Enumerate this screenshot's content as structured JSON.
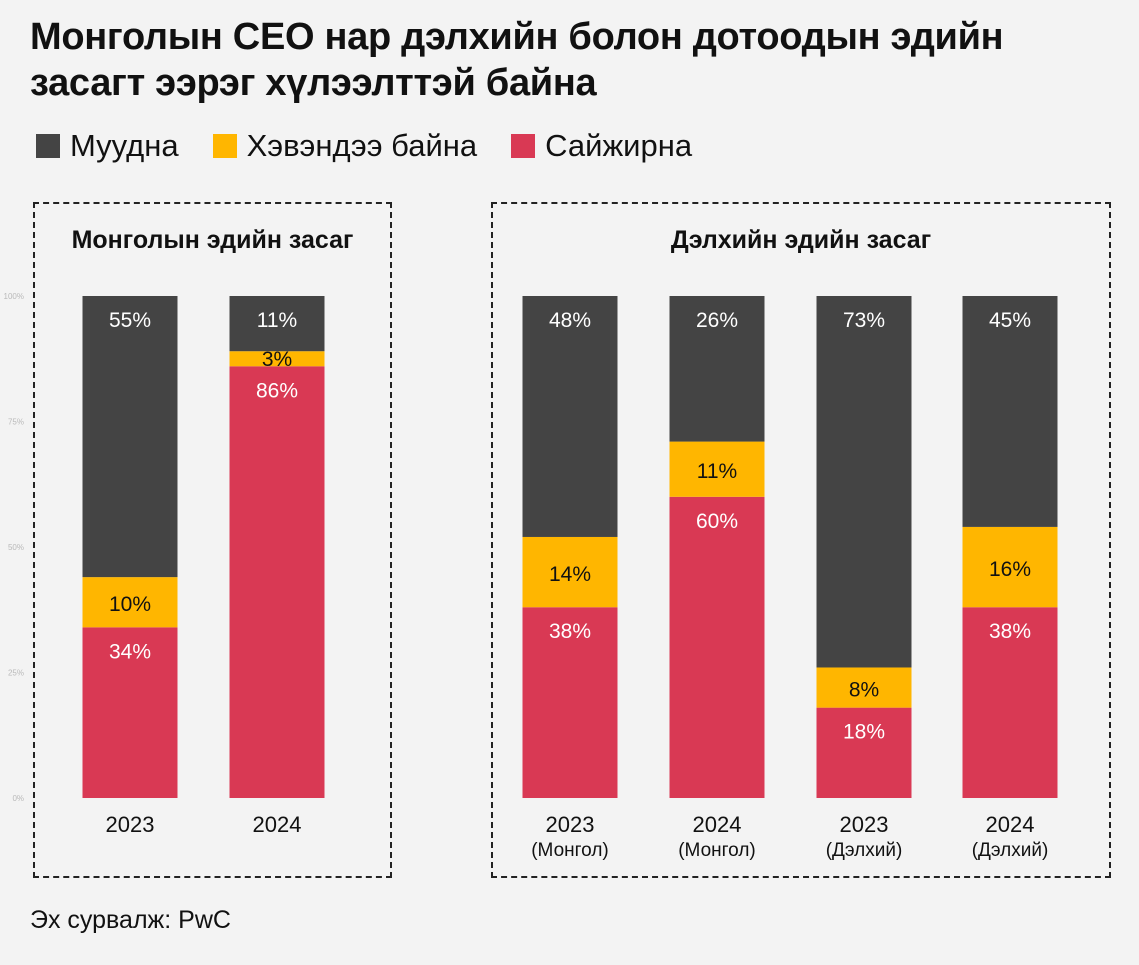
{
  "title": "Монголын CEO нар дэлхийн болон дотоодын эдийн засагт ээрэг хүлээлттэй байна",
  "legend": [
    {
      "label": "Муудна",
      "color": "#444444"
    },
    {
      "label": "Хэвэндээ байна",
      "color": "#FFB600"
    },
    {
      "label": "Сайжирна",
      "color": "#D93954"
    }
  ],
  "source": "Эх сурвалж: PwC",
  "chart_data": [
    {
      "type": "bar",
      "stacked": true,
      "title": "Монголын эдийн засаг",
      "categories": [
        [
          "2023"
        ],
        [
          "2024"
        ]
      ],
      "series": [
        {
          "name": "Сайжирна",
          "color": "#D93954",
          "values": [
            34,
            86
          ],
          "labels": [
            "34%",
            "86%"
          ]
        },
        {
          "name": "Хэвэндээ байна",
          "color": "#FFB600",
          "values": [
            10,
            3
          ],
          "labels": [
            "10%",
            "3%"
          ]
        },
        {
          "name": "Муудна",
          "color": "#444444",
          "values": [
            55,
            11
          ],
          "labels": [
            "55%",
            "11%"
          ]
        }
      ],
      "yticks": [
        "0%",
        "25%",
        "50%",
        "75%",
        "100%"
      ],
      "ylim": [
        0,
        100
      ]
    },
    {
      "type": "bar",
      "stacked": true,
      "title": "Дэлхийн эдийн засаг",
      "categories": [
        [
          "2023",
          "(Монгол)"
        ],
        [
          "2024",
          "(Монгол)"
        ],
        [
          "2023",
          "(Дэлхий)"
        ],
        [
          "2024",
          "(Дэлхий)"
        ]
      ],
      "series": [
        {
          "name": "Сайжирна",
          "color": "#D93954",
          "values": [
            38,
            60,
            18,
            38
          ],
          "labels": [
            "38%",
            "60%",
            "18%",
            "38%"
          ]
        },
        {
          "name": "Хэвэндээ байна",
          "color": "#FFB600",
          "values": [
            14,
            11,
            8,
            16
          ],
          "labels": [
            "14%",
            "11%",
            "8%",
            "16%"
          ]
        },
        {
          "name": "Муудна",
          "color": "#444444",
          "values": [
            48,
            26,
            73,
            45
          ],
          "labels": [
            "48%",
            "26%",
            "73%",
            "45%"
          ]
        }
      ],
      "ylim": [
        0,
        100
      ]
    }
  ]
}
